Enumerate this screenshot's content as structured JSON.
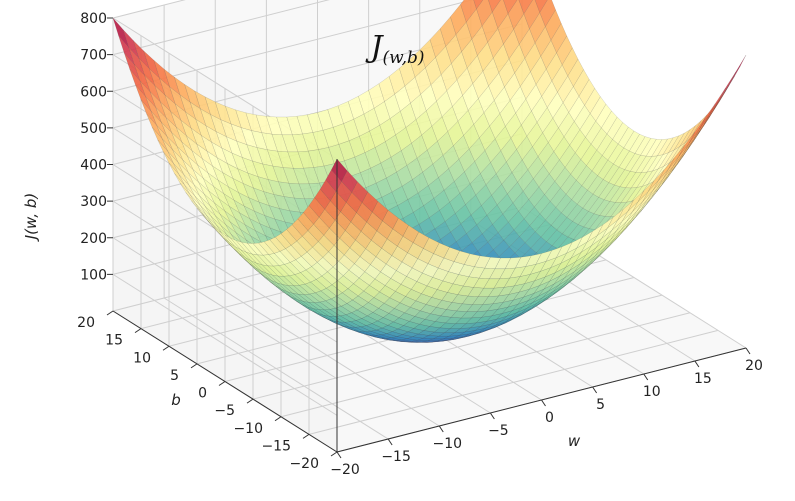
{
  "chart_data": {
    "type": "surface",
    "title": {
      "base": "J",
      "subscript": "(w,b)"
    },
    "xlabel": "w",
    "ylabel": "b",
    "zlabel": "J(w, b)",
    "xlim": [
      -20,
      20
    ],
    "ylim": [
      -20,
      20
    ],
    "zlim": [
      0,
      800
    ],
    "x_ticks": [
      "−20",
      "−15",
      "−10",
      "−5",
      "0",
      "5",
      "10",
      "15",
      "20"
    ],
    "y_ticks": [
      "−20",
      "−15",
      "−10",
      "−5",
      "0",
      "5",
      "10",
      "15",
      "20"
    ],
    "z_ticks": [
      "100",
      "200",
      "300",
      "400",
      "500",
      "600",
      "700",
      "800"
    ],
    "function": "J(w,b) = w^2 + b^2",
    "colormap": "Spectral",
    "grid": true
  }
}
